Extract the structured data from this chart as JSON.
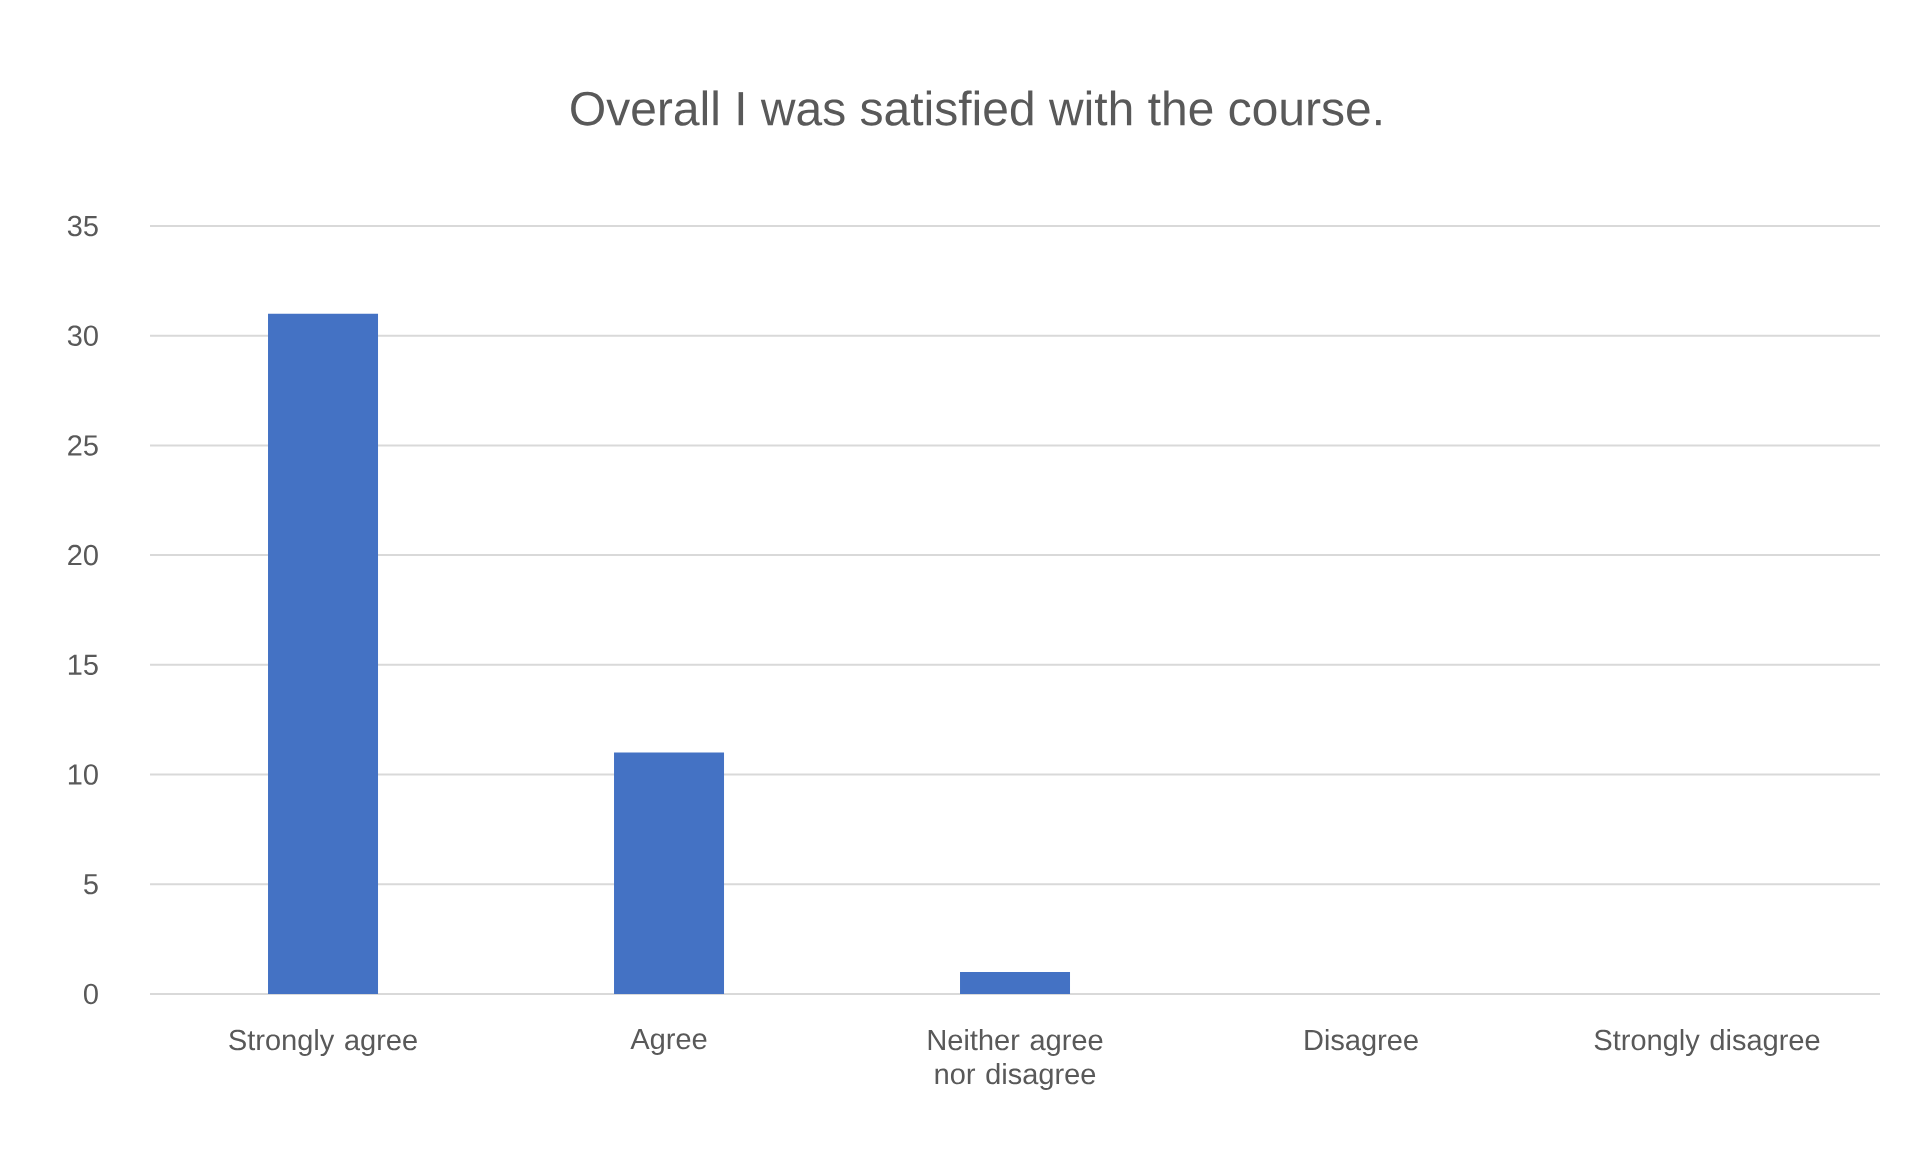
{
  "chart_data": {
    "type": "bar",
    "title": "Overall I was satisfied with the course.",
    "categories": [
      "Strongly agree",
      "Agree",
      "Neither agree nor disagree",
      "Disagree",
      "Strongly disagree"
    ],
    "values": [
      31,
      11,
      1,
      0,
      0
    ],
    "color": "#4472c4",
    "ylim": [
      0,
      35
    ],
    "yticks": [
      0,
      5,
      10,
      15,
      20,
      25,
      30,
      35
    ],
    "grid": "y"
  }
}
